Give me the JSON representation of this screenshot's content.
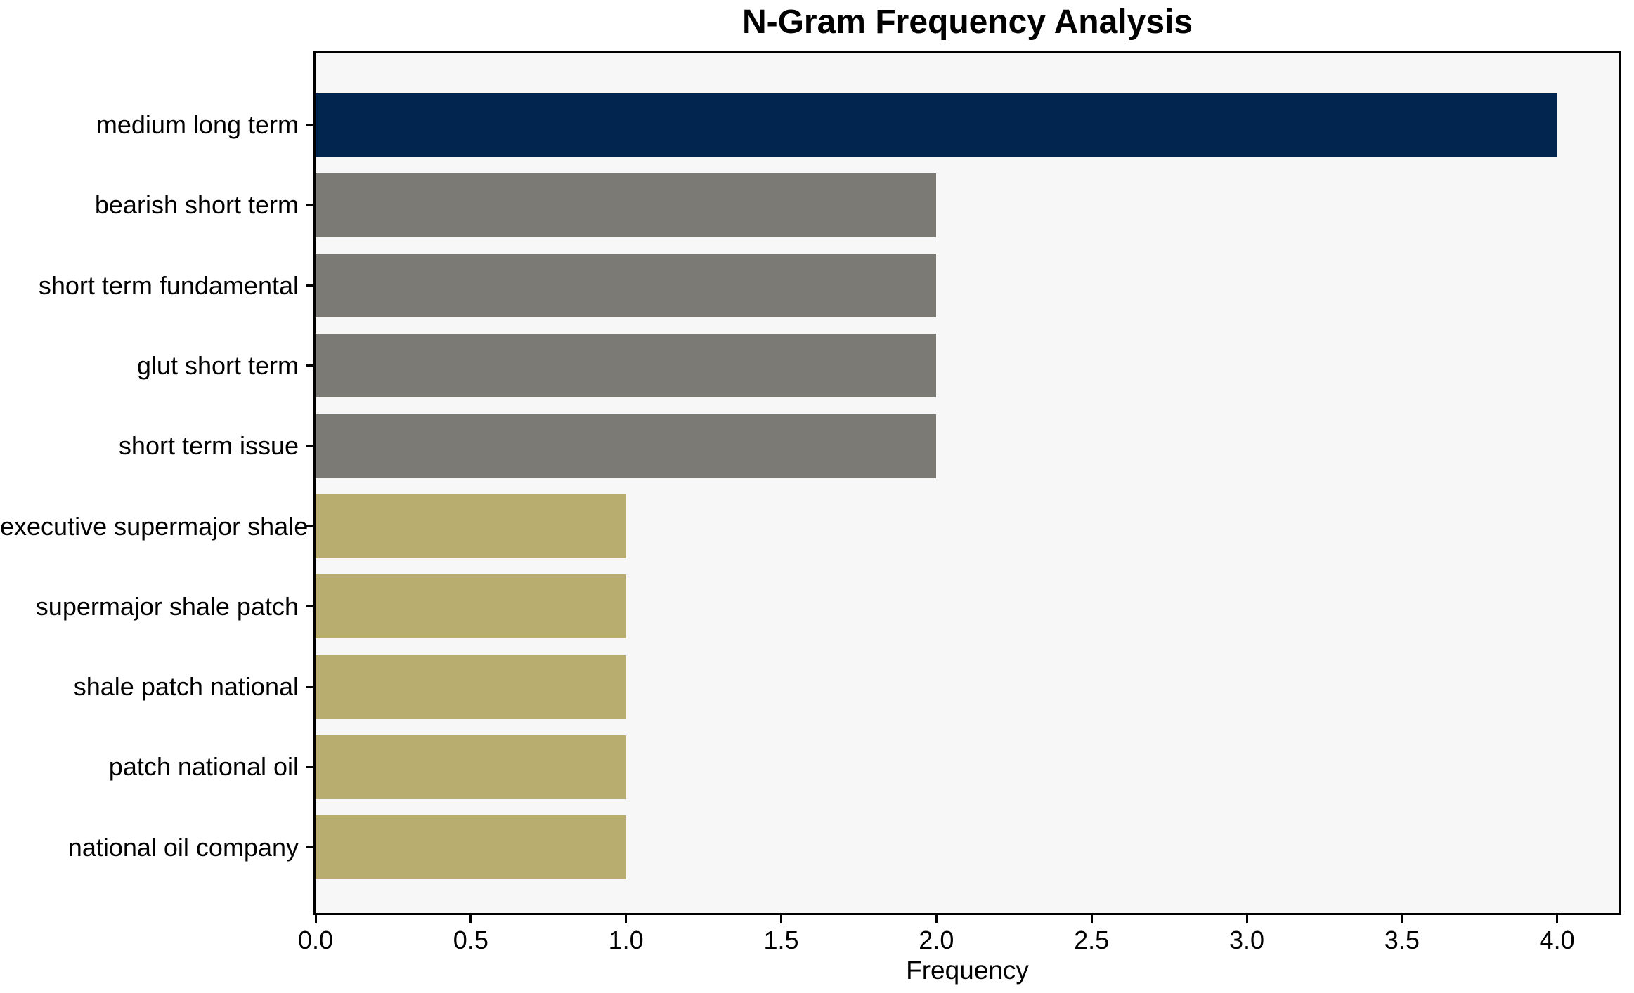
{
  "figure": {
    "background": "#ffffff",
    "plot_background": "#f7f7f7",
    "axis_color": "#000000"
  },
  "chart_data": {
    "type": "bar",
    "orientation": "horizontal",
    "title": "N-Gram Frequency Analysis",
    "xlabel": "Frequency",
    "ylabel": "",
    "categories": [
      "medium long term",
      "bearish short term",
      "short term fundamental",
      "glut short term",
      "short term issue",
      "executive supermajor shale",
      "supermajor shale patch",
      "shale patch national",
      "patch national oil",
      "national oil company"
    ],
    "values": [
      4,
      2,
      2,
      2,
      2,
      1,
      1,
      1,
      1,
      1
    ],
    "bar_colors": [
      "#01254e",
      "#7b7a74",
      "#7b7a74",
      "#7b7a74",
      "#7b7a74",
      "#b8ac6e",
      "#b8ac6e",
      "#b8ac6e",
      "#b8ac6e",
      "#b8ac6e"
    ],
    "xlim": [
      0,
      4.2
    ],
    "xticks": [
      0.0,
      0.5,
      1.0,
      1.5,
      2.0,
      2.5,
      3.0,
      3.5,
      4.0
    ],
    "xtick_labels": [
      "0.0",
      "0.5",
      "1.0",
      "1.5",
      "2.0",
      "2.5",
      "3.0",
      "3.5",
      "4.0"
    ],
    "grid": false,
    "legend": "none"
  }
}
